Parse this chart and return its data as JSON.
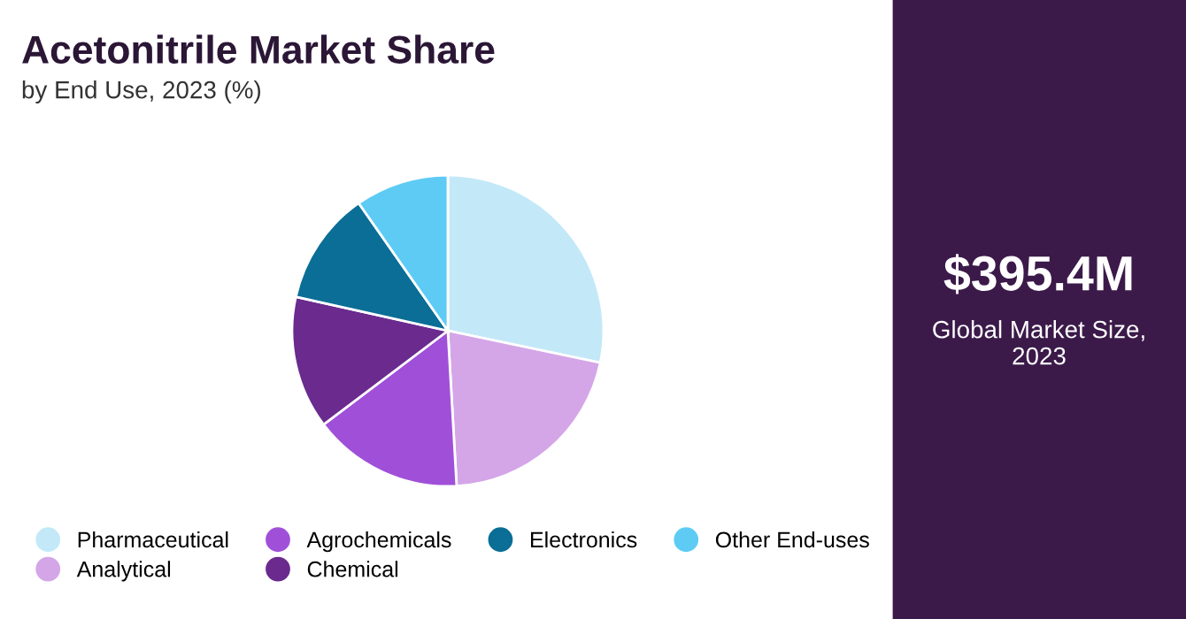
{
  "chart_data": {
    "type": "pie",
    "title": "Acetonitrile Market Share",
    "subtitle": "by End Use, 2023 (%)",
    "categories": [
      "Pharmaceutical",
      "Analytical",
      "Agrochemicals",
      "Chemical",
      "Electronics",
      "Other End-uses"
    ],
    "values": [
      28.3,
      20.8,
      15.6,
      13.8,
      11.8,
      9.7
    ],
    "colors": [
      "#c3e9f8",
      "#d4a6e8",
      "#a050d8",
      "#6a2a8e",
      "#0a6e96",
      "#5ecbf5"
    ],
    "legend": "bottom",
    "annotations": [
      "$395.4M",
      "Global Market Size,\n2023"
    ]
  }
}
